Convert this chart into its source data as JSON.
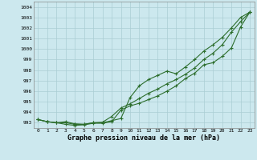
{
  "title": "Graphe pression niveau de la mer (hPa)",
  "bg_color": "#cce8ee",
  "grid_color": "#aacdd4",
  "line_color": "#2d6e2d",
  "xlim": [
    -0.5,
    23.5
  ],
  "ylim": [
    992.5,
    1004.5
  ],
  "xticks": [
    0,
    1,
    2,
    3,
    4,
    5,
    6,
    7,
    8,
    9,
    10,
    11,
    12,
    13,
    14,
    15,
    16,
    17,
    18,
    19,
    20,
    21,
    22,
    23
  ],
  "yticks": [
    993,
    994,
    995,
    996,
    997,
    998,
    999,
    1000,
    1001,
    1002,
    1003,
    1004
  ],
  "line1": [
    993.3,
    993.1,
    993.0,
    993.1,
    992.9,
    992.85,
    993.0,
    993.0,
    993.2,
    993.4,
    995.4,
    996.5,
    997.1,
    997.5,
    997.9,
    997.65,
    998.3,
    999.0,
    999.8,
    1000.4,
    1001.1,
    1002.0,
    1003.0,
    1003.5
  ],
  "line2": [
    993.3,
    993.1,
    993.0,
    992.85,
    992.75,
    992.8,
    992.95,
    992.95,
    993.1,
    994.2,
    994.6,
    994.85,
    995.2,
    995.55,
    996.0,
    996.5,
    997.2,
    997.7,
    998.5,
    998.7,
    999.3,
    1000.1,
    1002.1,
    1003.5
  ],
  "line3": [
    993.3,
    993.1,
    993.0,
    993.0,
    992.85,
    992.85,
    993.0,
    993.05,
    993.6,
    994.4,
    994.8,
    995.3,
    995.8,
    996.2,
    996.7,
    997.1,
    997.6,
    998.2,
    999.0,
    999.6,
    1000.4,
    1001.6,
    1002.6,
    1003.5
  ],
  "marker": "+",
  "markersize": 3.5,
  "linewidth": 0.8
}
